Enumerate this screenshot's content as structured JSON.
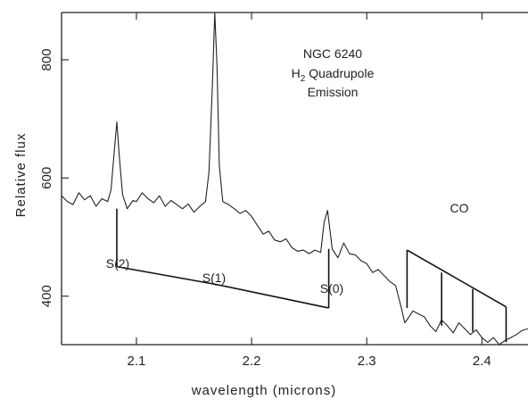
{
  "chart_data": {
    "type": "line",
    "xlabel": "wavelength (microns)",
    "ylabel": "Relative flux",
    "xlim": [
      2.035,
      2.44
    ],
    "ylim": [
      318,
      880
    ],
    "x_ticks": [
      2.1,
      2.2,
      2.3,
      2.4
    ],
    "x_tick_labels": [
      "2.1",
      "2.2",
      "2.3",
      "2.4"
    ],
    "y_ticks": [
      400,
      600,
      800
    ],
    "y_tick_labels": [
      "400",
      "600",
      "800"
    ],
    "annotation_title": [
      "NGC 6240",
      "H",
      "2",
      " Quadrupole",
      "Emission"
    ],
    "series": [
      {
        "x": [
          2.035,
          2.04,
          2.045,
          2.05,
          2.055,
          2.06,
          2.065,
          2.07,
          2.075,
          2.078,
          2.081,
          2.083,
          2.085,
          2.088,
          2.092,
          2.097,
          2.1,
          2.105,
          2.11,
          2.115,
          2.12,
          2.125,
          2.13,
          2.135,
          2.14,
          2.145,
          2.15,
          2.155,
          2.16,
          2.163,
          2.166,
          2.168,
          2.17,
          2.172,
          2.175,
          2.18,
          2.185,
          2.19,
          2.195,
          2.2,
          2.205,
          2.21,
          2.215,
          2.22,
          2.225,
          2.23,
          2.235,
          2.24,
          2.245,
          2.25,
          2.255,
          2.26,
          2.263,
          2.266,
          2.27,
          2.275,
          2.28,
          2.285,
          2.29,
          2.295,
          2.3,
          2.305,
          2.31,
          2.315,
          2.32,
          2.325,
          2.33,
          2.333,
          2.335,
          2.34,
          2.345,
          2.35,
          2.355,
          2.36,
          2.365,
          2.37,
          2.375,
          2.38,
          2.385,
          2.39,
          2.395,
          2.4,
          2.405,
          2.41,
          2.415,
          2.42,
          2.425,
          2.43,
          2.435,
          2.44
        ],
        "y": [
          570,
          560,
          555,
          575,
          563,
          570,
          552,
          565,
          560,
          580,
          650,
          695,
          640,
          572,
          548,
          562,
          560,
          575,
          565,
          558,
          570,
          552,
          562,
          555,
          548,
          556,
          542,
          552,
          560,
          610,
          760,
          880,
          790,
          620,
          560,
          555,
          548,
          540,
          545,
          535,
          520,
          505,
          510,
          495,
          492,
          497,
          482,
          476,
          478,
          472,
          478,
          474,
          525,
          545,
          480,
          465,
          490,
          472,
          470,
          460,
          455,
          440,
          445,
          435,
          425,
          418,
          380,
          355,
          360,
          375,
          370,
          365,
          350,
          340,
          360,
          350,
          338,
          355,
          345,
          335,
          343,
          330,
          322,
          330,
          318,
          325,
          330,
          335,
          342,
          345
        ]
      }
    ],
    "h2_lines": [
      {
        "label": "S(2)",
        "x": 2.083
      },
      {
        "label": "S(1)",
        "x": 2.169
      },
      {
        "label": "S(0)",
        "x": 2.267
      }
    ],
    "co_label": "CO",
    "co_lines": [
      2.335,
      2.365,
      2.392,
      2.421
    ]
  }
}
